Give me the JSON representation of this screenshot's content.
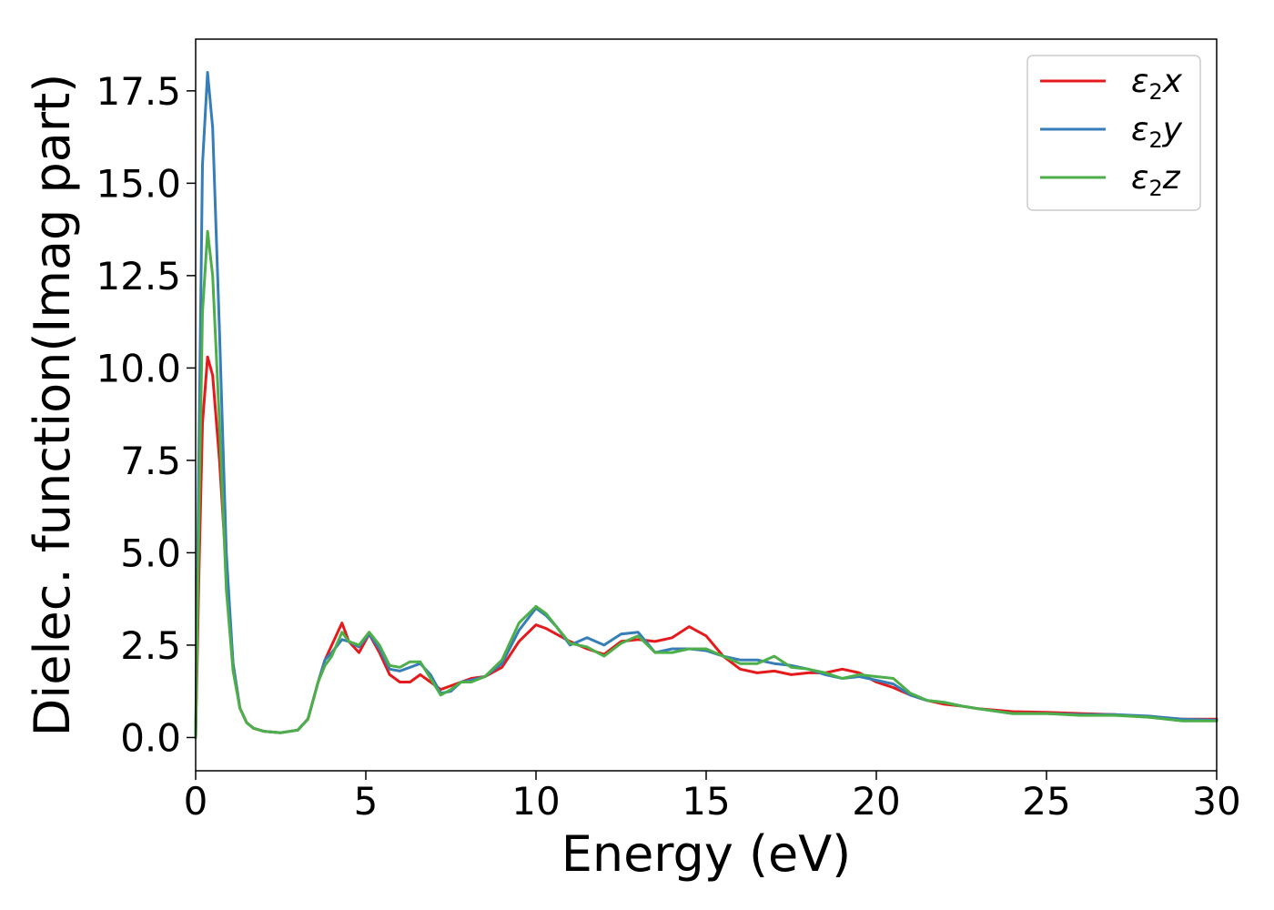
{
  "chart_data": {
    "type": "line",
    "xlabel": "Energy (eV)",
    "ylabel": "Dielec. function(Imag part)",
    "xlim": [
      0,
      30
    ],
    "ylim": [
      -0.9,
      18.9
    ],
    "xticks": [
      0,
      5,
      10,
      15,
      20,
      25,
      30
    ],
    "xtick_labels": [
      "0",
      "5",
      "10",
      "15",
      "20",
      "25",
      "30"
    ],
    "yticks": [
      0,
      2.5,
      5,
      7.5,
      10,
      12.5,
      15,
      17.5
    ],
    "ytick_labels": [
      "0.0",
      "2.5",
      "5.0",
      "7.5",
      "10.0",
      "12.5",
      "15.0",
      "17.5"
    ],
    "grid": false,
    "legend_position": "top-right",
    "series": [
      {
        "name": "ε2x",
        "legend_main": "ε",
        "legend_sub": "2",
        "legend_suffix": "x",
        "color": "#e41a1c",
        "x": [
          0,
          0.1,
          0.2,
          0.35,
          0.5,
          0.7,
          0.9,
          1.1,
          1.3,
          1.5,
          1.7,
          2.0,
          2.5,
          3.0,
          3.3,
          3.6,
          3.8,
          4.0,
          4.3,
          4.5,
          4.8,
          5.1,
          5.4,
          5.7,
          6.0,
          6.3,
          6.6,
          6.9,
          7.2,
          7.5,
          7.8,
          8.1,
          8.5,
          9.0,
          9.5,
          10.0,
          10.3,
          10.6,
          11.0,
          11.5,
          12.0,
          12.5,
          13.0,
          13.5,
          14.0,
          14.5,
          15.0,
          15.5,
          16.0,
          16.5,
          17.0,
          17.5,
          18.0,
          18.5,
          19.0,
          19.5,
          20.0,
          20.5,
          21.0,
          21.5,
          22.0,
          22.5,
          23.0,
          24.0,
          25.0,
          26.0,
          27.0,
          28.0,
          29.0,
          30.0
        ],
        "y": [
          0,
          4.5,
          8.5,
          10.3,
          9.8,
          7.5,
          4.5,
          2.0,
          0.8,
          0.4,
          0.25,
          0.17,
          0.13,
          0.2,
          0.5,
          1.5,
          2.1,
          2.5,
          3.1,
          2.6,
          2.3,
          2.8,
          2.3,
          1.7,
          1.5,
          1.5,
          1.7,
          1.5,
          1.3,
          1.4,
          1.5,
          1.6,
          1.65,
          1.9,
          2.6,
          3.05,
          2.95,
          2.8,
          2.6,
          2.4,
          2.25,
          2.6,
          2.65,
          2.6,
          2.7,
          3.0,
          2.75,
          2.2,
          1.85,
          1.75,
          1.8,
          1.7,
          1.75,
          1.75,
          1.85,
          1.75,
          1.5,
          1.35,
          1.15,
          1.0,
          0.9,
          0.85,
          0.78,
          0.7,
          0.68,
          0.65,
          0.62,
          0.55,
          0.5,
          0.5
        ]
      },
      {
        "name": "ε2y",
        "legend_main": "ε",
        "legend_sub": "2",
        "legend_suffix": "y",
        "color": "#377eb8",
        "x": [
          0,
          0.1,
          0.2,
          0.35,
          0.5,
          0.7,
          0.9,
          1.1,
          1.3,
          1.5,
          1.7,
          2.0,
          2.5,
          3.0,
          3.3,
          3.6,
          3.8,
          4.0,
          4.3,
          4.5,
          4.8,
          5.1,
          5.4,
          5.7,
          6.0,
          6.3,
          6.6,
          6.9,
          7.2,
          7.5,
          7.8,
          8.1,
          8.5,
          9.0,
          9.5,
          10.0,
          10.3,
          10.6,
          11.0,
          11.5,
          12.0,
          12.5,
          13.0,
          13.5,
          14.0,
          14.5,
          15.0,
          15.5,
          16.0,
          16.5,
          17.0,
          17.5,
          18.0,
          18.5,
          19.0,
          19.5,
          20.0,
          20.5,
          21.0,
          21.5,
          22.0,
          22.5,
          23.0,
          24.0,
          25.0,
          26.0,
          27.0,
          28.0,
          29.0,
          30.0
        ],
        "y": [
          0,
          8.0,
          15.5,
          18.0,
          16.5,
          11.0,
          5.0,
          2.0,
          0.8,
          0.4,
          0.25,
          0.17,
          0.13,
          0.2,
          0.5,
          1.5,
          2.1,
          2.3,
          2.65,
          2.6,
          2.45,
          2.8,
          2.4,
          1.85,
          1.8,
          1.9,
          2.0,
          1.7,
          1.2,
          1.25,
          1.5,
          1.55,
          1.65,
          2.0,
          2.9,
          3.5,
          3.3,
          3.0,
          2.5,
          2.7,
          2.5,
          2.8,
          2.85,
          2.3,
          2.4,
          2.4,
          2.35,
          2.2,
          2.1,
          2.1,
          2.0,
          1.95,
          1.85,
          1.7,
          1.6,
          1.65,
          1.55,
          1.45,
          1.15,
          1.0,
          0.95,
          0.85,
          0.78,
          0.65,
          0.65,
          0.62,
          0.62,
          0.58,
          0.5,
          0.47
        ]
      },
      {
        "name": "ε2z",
        "legend_main": "ε",
        "legend_sub": "2",
        "legend_suffix": "z",
        "color": "#4daf4a",
        "x": [
          0,
          0.1,
          0.2,
          0.35,
          0.5,
          0.7,
          0.9,
          1.1,
          1.3,
          1.5,
          1.7,
          2.0,
          2.5,
          3.0,
          3.3,
          3.6,
          3.8,
          4.0,
          4.3,
          4.5,
          4.8,
          5.1,
          5.4,
          5.7,
          6.0,
          6.3,
          6.6,
          6.9,
          7.2,
          7.5,
          7.8,
          8.1,
          8.5,
          9.0,
          9.5,
          10.0,
          10.3,
          10.6,
          11.0,
          11.5,
          12.0,
          12.5,
          13.0,
          13.5,
          14.0,
          14.5,
          15.0,
          15.5,
          16.0,
          16.5,
          17.0,
          17.5,
          18.0,
          18.5,
          19.0,
          19.5,
          20.0,
          20.5,
          21.0,
          21.5,
          22.0,
          22.5,
          23.0,
          24.0,
          25.0,
          26.0,
          27.0,
          28.0,
          29.0,
          30.0
        ],
        "y": [
          0,
          6.0,
          11.5,
          13.7,
          12.5,
          8.5,
          4.0,
          1.8,
          0.8,
          0.4,
          0.25,
          0.17,
          0.13,
          0.2,
          0.5,
          1.5,
          1.95,
          2.2,
          2.85,
          2.6,
          2.5,
          2.85,
          2.5,
          1.95,
          1.9,
          2.05,
          2.05,
          1.6,
          1.15,
          1.3,
          1.5,
          1.5,
          1.65,
          2.1,
          3.1,
          3.55,
          3.35,
          3.0,
          2.55,
          2.45,
          2.2,
          2.55,
          2.75,
          2.3,
          2.3,
          2.4,
          2.4,
          2.2,
          2.0,
          2.0,
          2.2,
          1.9,
          1.85,
          1.75,
          1.6,
          1.7,
          1.65,
          1.6,
          1.2,
          1.0,
          0.95,
          0.85,
          0.78,
          0.65,
          0.65,
          0.6,
          0.6,
          0.55,
          0.45,
          0.45
        ]
      }
    ]
  }
}
